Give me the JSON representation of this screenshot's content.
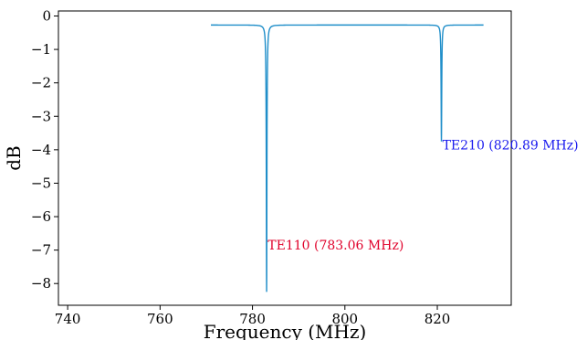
{
  "chart_data": {
    "type": "line",
    "title": "",
    "xlabel": "Frequency (MHz)",
    "ylabel": "dB",
    "xlim": [
      738,
      836
    ],
    "ylim": [
      -8.65,
      0.15
    ],
    "xticks": [
      740,
      760,
      780,
      800,
      820
    ],
    "yticks": [
      0,
      -1,
      -2,
      -3,
      -4,
      -5,
      -6,
      -7,
      -8
    ],
    "ytick_labels": [
      "0",
      "−1",
      "−2",
      "−3",
      "−4",
      "−5",
      "−6",
      "−7",
      "−8"
    ],
    "grid": false,
    "line_color": "#1f8ec9",
    "series": [
      {
        "baseline_db": -0.27,
        "x_start": 771,
        "x_end": 830,
        "resonances": [
          {
            "x": 783.06,
            "min_db": -8.25,
            "halfwidth": 0.08
          },
          {
            "x": 820.89,
            "min_db": -3.75,
            "halfwidth": 0.08
          }
        ]
      }
    ],
    "annotations": [
      {
        "text": "TE110 (783.06 MHz)",
        "x": 783.3,
        "y": -6.85,
        "color": "#e0002a"
      },
      {
        "text": "TE210 (820.89 MHz)",
        "x": 821.1,
        "y": -3.85,
        "color": "#1a1aee"
      }
    ]
  }
}
